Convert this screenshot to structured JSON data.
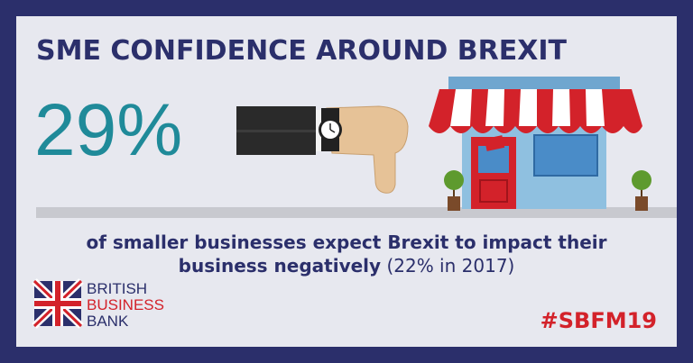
{
  "header": {
    "title": "SME CONFIDENCE AROUND BREXIT"
  },
  "stat": {
    "value": "29%"
  },
  "caption": {
    "line1": "of smaller businesses expect Brexit to impact their",
    "line2_bold": "business negatively",
    "line2_note": "(22% in 2017)"
  },
  "logo": {
    "line1": "BRITISH",
    "line2": "BUSINESS",
    "line3": "BANK"
  },
  "hashtag": "#SBFM19"
}
